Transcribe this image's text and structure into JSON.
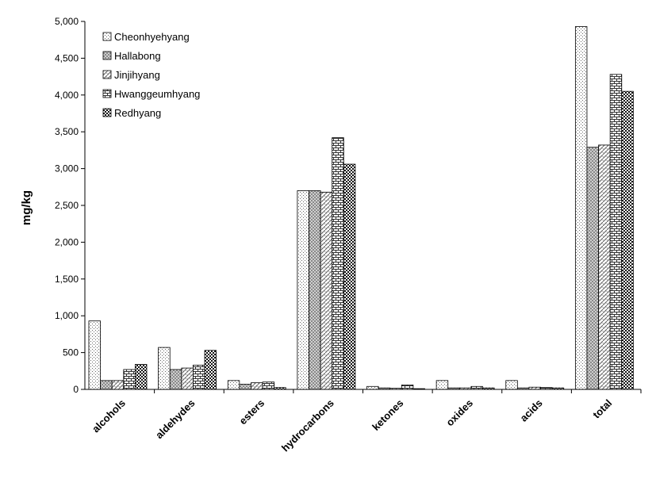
{
  "chart_data": {
    "type": "bar",
    "title": "",
    "xlabel": "",
    "ylabel": "mg/kg",
    "ylim": [
      0,
      5000
    ],
    "yticks": [
      "0",
      "500",
      "1,000",
      "1,500",
      "2,000",
      "2,500",
      "3,000",
      "3,500",
      "4,000",
      "4,500",
      "5,000"
    ],
    "categories": [
      "alcohols",
      "aldehydes",
      "esters",
      "hydrocarbons",
      "ketones",
      "oxides",
      "acids",
      "total"
    ],
    "legend_position": "top-left",
    "grid": false,
    "series": [
      {
        "name": "Cheonhyehyang",
        "values": [
          930,
          570,
          120,
          2700,
          40,
          120,
          120,
          4930
        ]
      },
      {
        "name": "Hallabong",
        "values": [
          120,
          270,
          70,
          2700,
          20,
          20,
          20,
          3290
        ]
      },
      {
        "name": "Jinjihyang",
        "values": [
          120,
          290,
          90,
          2680,
          15,
          20,
          30,
          3320
        ]
      },
      {
        "name": "Hwanggeumhyang",
        "values": [
          270,
          330,
          100,
          3420,
          60,
          40,
          25,
          4280
        ]
      },
      {
        "name": "Redhyang",
        "values": [
          340,
          530,
          25,
          3060,
          10,
          20,
          20,
          4050
        ]
      }
    ]
  }
}
